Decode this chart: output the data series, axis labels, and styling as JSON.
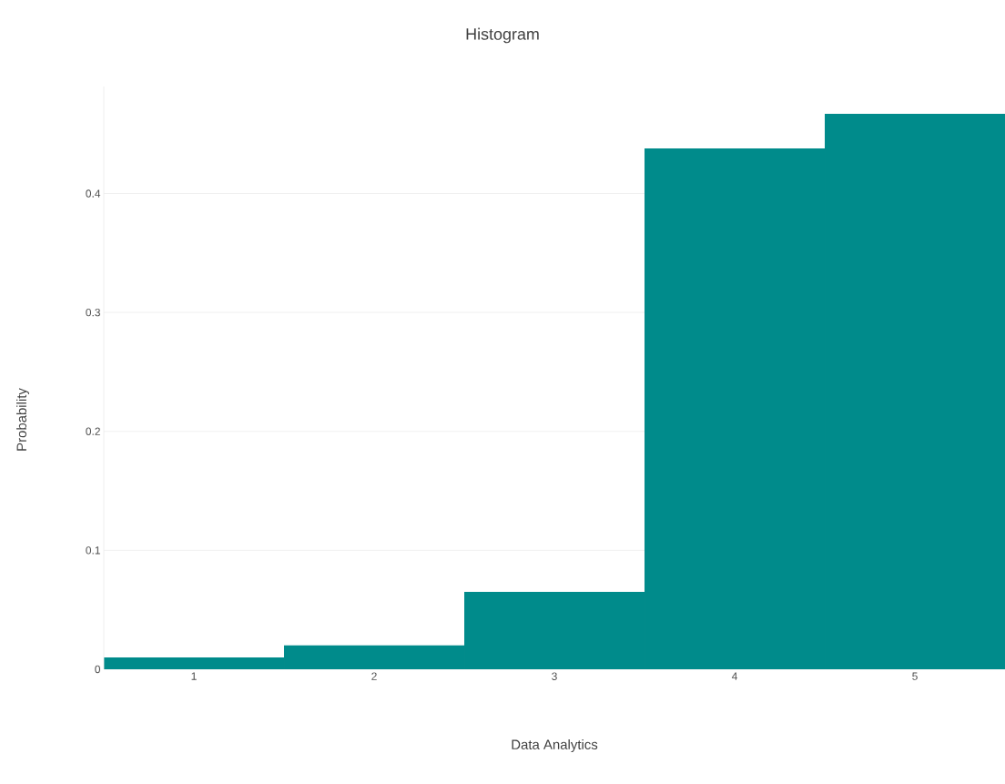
{
  "chart_data": {
    "type": "histogram",
    "title": "Histogram",
    "xlabel": "Data Analytics",
    "ylabel": "Probability",
    "bins": [
      0.5,
      1.5,
      2.5,
      3.5,
      4.5,
      5.5
    ],
    "values": [
      0.01,
      0.02,
      0.065,
      0.438,
      0.467
    ],
    "color": "#008b8b",
    "xlim": [
      0.5,
      5.5
    ],
    "ylim": [
      0,
      0.49
    ],
    "xticks": [
      1,
      2,
      3,
      4,
      5
    ],
    "yticks": [
      0,
      0.1,
      0.2,
      0.3,
      0.4
    ],
    "grid": "y"
  }
}
